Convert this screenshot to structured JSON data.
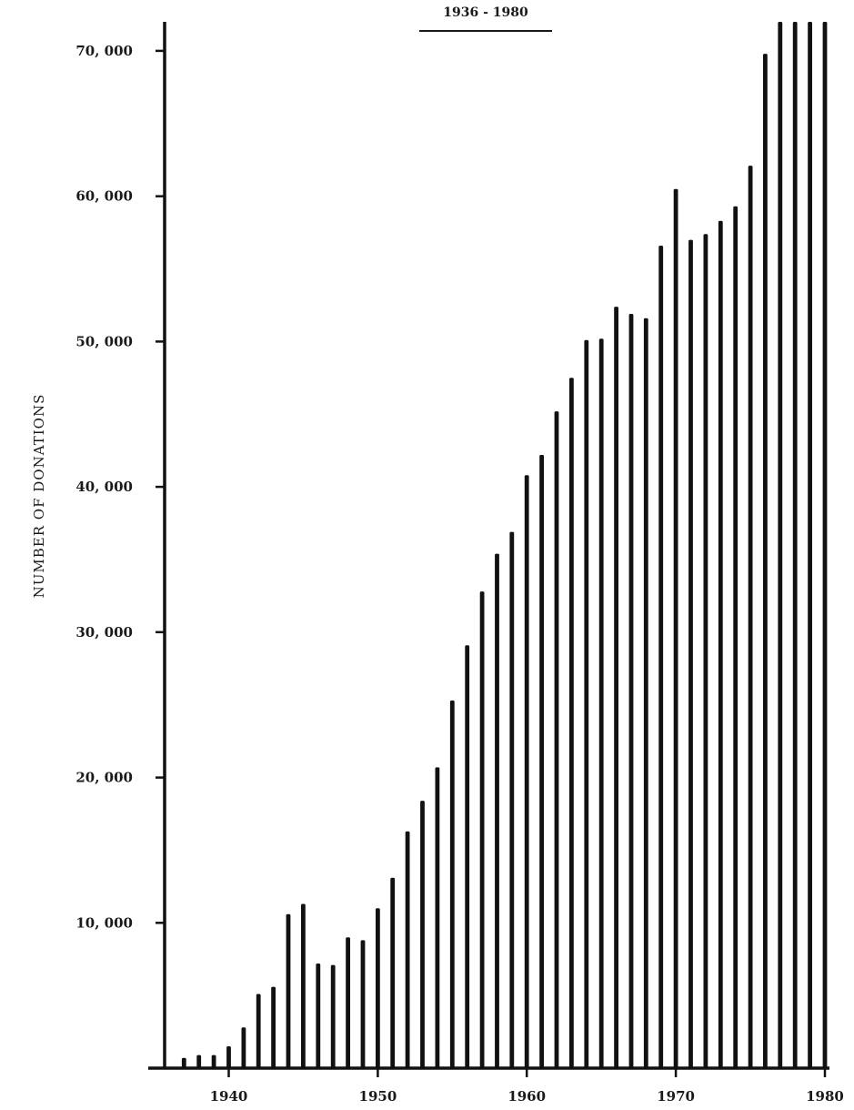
{
  "chart_data": {
    "type": "bar",
    "subtitle": "1936 - 1980",
    "ylabel": "NUMBER   OF   DONATIONS",
    "xlabel": "",
    "x_ticks": [
      "1940",
      "1950",
      "1960",
      "1970",
      "1980"
    ],
    "y_ticks": [
      "10, 000",
      "20, 000",
      "30, 000",
      "40, 000",
      "50, 000",
      "60, 000",
      "70, 000"
    ],
    "xlim": [
      1935.7,
      1980
    ],
    "ylim": [
      0,
      72000
    ],
    "grid": false,
    "legend": "none",
    "bar_color": "#111111",
    "years": [
      1937,
      1938,
      1939,
      1940,
      1941,
      1942,
      1943,
      1944,
      1945,
      1946,
      1947,
      1948,
      1949,
      1950,
      1951,
      1952,
      1953,
      1954,
      1955,
      1956,
      1957,
      1958,
      1959,
      1960,
      1961,
      1962,
      1963,
      1964,
      1965,
      1966,
      1967,
      1968,
      1969,
      1970,
      1971,
      1972,
      1973,
      1974,
      1975,
      1976,
      1977,
      1978,
      1979,
      1980
    ],
    "values": [
      700,
      900,
      900,
      1500,
      2800,
      5100,
      5600,
      10600,
      11300,
      7200,
      7100,
      9000,
      8800,
      11000,
      13100,
      16300,
      18400,
      20700,
      25300,
      29100,
      32800,
      35400,
      36900,
      40800,
      42200,
      45200,
      47500,
      50100,
      50200,
      52400,
      51900,
      51600,
      56600,
      60500,
      57000,
      57400,
      58300,
      59300,
      62100,
      69800,
      72000,
      72000,
      72000,
      72000
    ]
  }
}
